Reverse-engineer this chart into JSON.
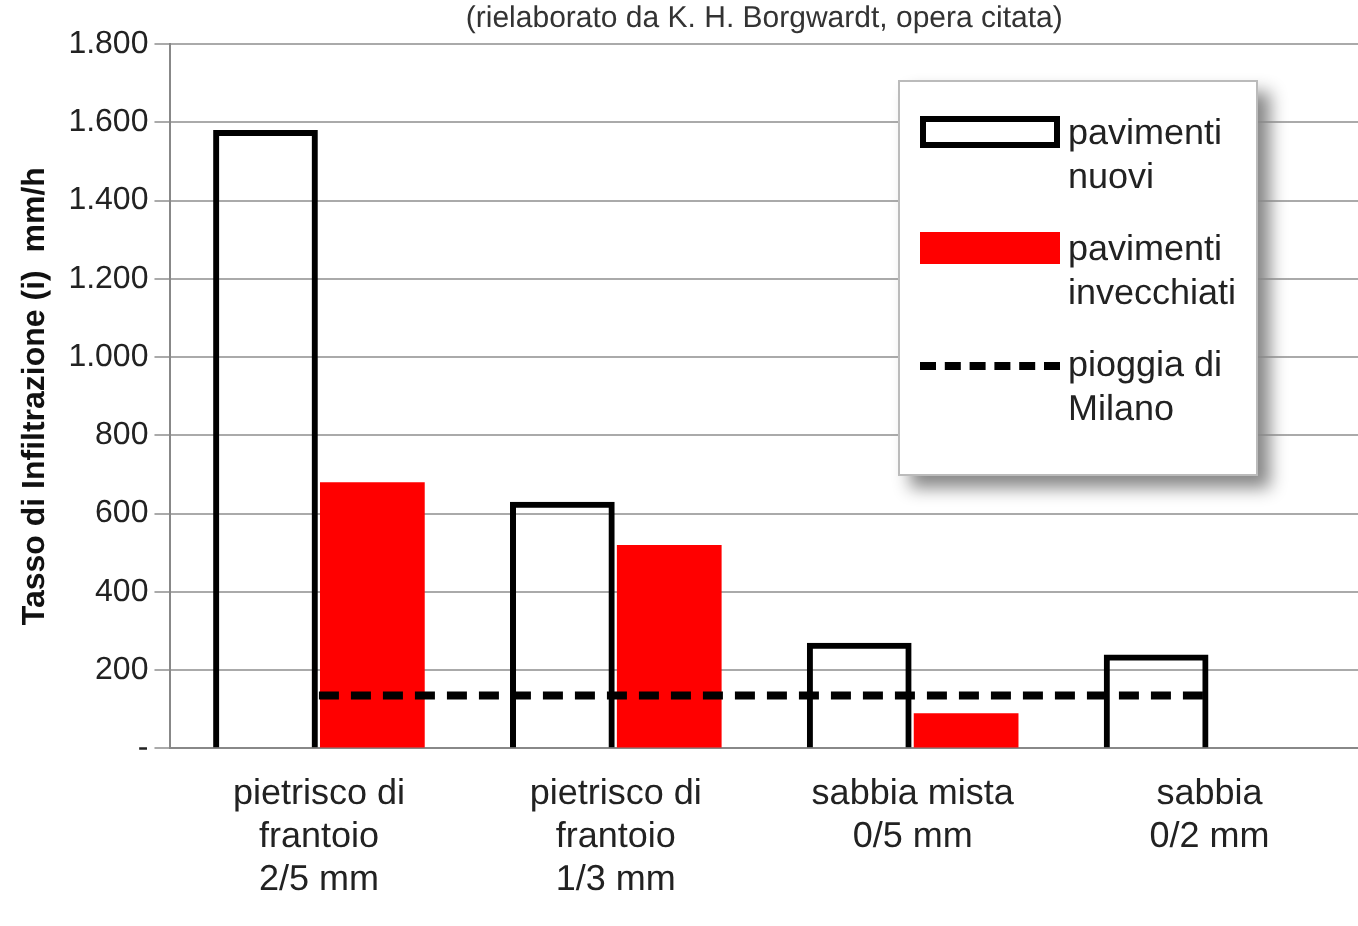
{
  "chart_data": {
    "type": "bar",
    "title": "(rielaborato da K. H. Borgwardt, opera citata)",
    "ylabel": "Tasso di Infiltrazione (i)  mm/h",
    "categories": [
      "pietrisco di\nfrantoio\n2/5 mm",
      "pietrisco di\nfrantoio\n1/3 mm",
      "sabbia mista\n0/5 mm",
      "sabbia\n0/2 mm"
    ],
    "series": [
      {
        "name": "pavimenti\nnuovi",
        "color": "#000000",
        "values": [
          1580,
          630,
          270,
          240
        ]
      },
      {
        "name": "pavimenti\ninvecchiati",
        "color": "#ff0000",
        "values": [
          680,
          520,
          90,
          0
        ]
      },
      {
        "name": "pioggia di\nMilano",
        "type": "line",
        "color": "#000000",
        "line_style": "dashed",
        "marker": "none",
        "values": [
          135,
          135,
          135,
          135
        ]
      }
    ],
    "ylim": [
      0,
      1800
    ],
    "yticks": [
      {
        "value": 0,
        "label": "-"
      },
      200,
      400,
      600,
      800,
      {
        "value": 1000,
        "label": "1.000"
      },
      {
        "value": 1200,
        "label": "1.200"
      },
      {
        "value": 1400,
        "label": "1.400"
      },
      {
        "value": 1600,
        "label": "1.600"
      },
      {
        "value": 1800,
        "label": "1.800"
      }
    ],
    "grid": "y",
    "legend": "top right"
  }
}
